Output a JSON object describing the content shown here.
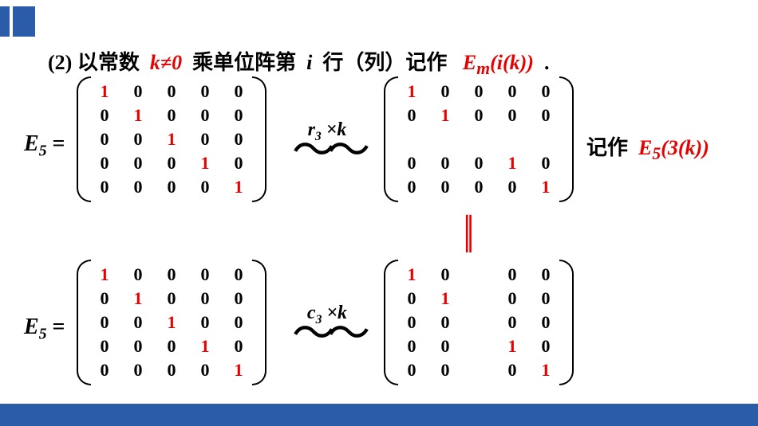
{
  "colors": {
    "accent_blue": "#2a5caa",
    "red": "#e60000",
    "text": "#000000",
    "bg": "#ffffff"
  },
  "title": {
    "num": "(2)",
    "seg1": "以常数",
    "k_neq": "k≠0",
    "seg2": "乘单位阵第",
    "i": "i",
    "seg3": "行（列）记作",
    "Em": "E",
    "Em_sub": "m",
    "Em_arg": "(i(k))",
    "period": "."
  },
  "eq1": {
    "label": "E",
    "label_sub": "5",
    "equals": "=",
    "matrixL": {
      "rows": [
        [
          "1",
          "0",
          "0",
          "0",
          "0"
        ],
        [
          "0",
          "1",
          "0",
          "0",
          "0"
        ],
        [
          "0",
          "0",
          "1",
          "0",
          "0"
        ],
        [
          "0",
          "0",
          "0",
          "1",
          "0"
        ],
        [
          "0",
          "0",
          "0",
          "0",
          "1"
        ]
      ],
      "blank_row": -1,
      "blank_col": -1
    },
    "arrow_label_pre": "r",
    "arrow_label_sub": "3",
    "arrow_label_op": " ×k",
    "matrixR": {
      "rows": [
        [
          "1",
          "0",
          "0",
          "0",
          "0"
        ],
        [
          "0",
          "1",
          "0",
          "0",
          "0"
        ],
        [
          "",
          "",
          "",
          "",
          ""
        ],
        [
          "0",
          "0",
          "0",
          "1",
          "0"
        ],
        [
          "0",
          "0",
          "0",
          "0",
          "1"
        ]
      ],
      "blank_row": 2,
      "blank_col": -1
    },
    "note_txt": "记作",
    "note_E": "E",
    "note_sub": "5",
    "note_arg": "(3(k))"
  },
  "eq2": {
    "label": "E",
    "label_sub": "5",
    "equals": "=",
    "matrixL": {
      "rows": [
        [
          "1",
          "0",
          "0",
          "0",
          "0"
        ],
        [
          "0",
          "1",
          "0",
          "0",
          "0"
        ],
        [
          "0",
          "0",
          "1",
          "0",
          "0"
        ],
        [
          "0",
          "0",
          "0",
          "1",
          "0"
        ],
        [
          "0",
          "0",
          "0",
          "0",
          "1"
        ]
      ],
      "blank_row": -1,
      "blank_col": -1
    },
    "arrow_label_pre": "c",
    "arrow_label_sub": "3",
    "arrow_label_op": " ×k",
    "matrixR": {
      "rows": [
        [
          "1",
          "0",
          "",
          "0",
          "0"
        ],
        [
          "0",
          "1",
          "",
          "0",
          "0"
        ],
        [
          "0",
          "0",
          "",
          "0",
          "0"
        ],
        [
          "0",
          "0",
          "",
          "1",
          "0"
        ],
        [
          "0",
          "0",
          "",
          "0",
          "1"
        ]
      ],
      "blank_row": -1,
      "blank_col": 2
    }
  },
  "vert_equal": "||"
}
